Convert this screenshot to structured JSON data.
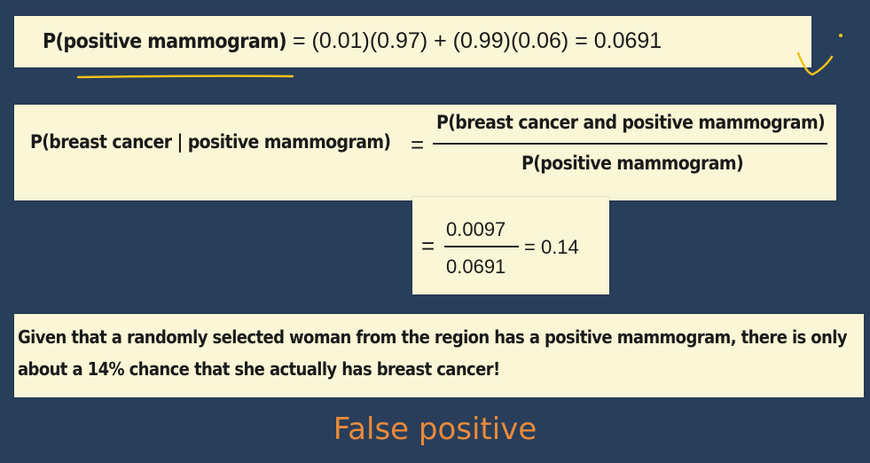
{
  "eq1": {
    "lhs": "P(positive mammogram)",
    "rhs": "= (0.01)(0.97) + (0.99)(0.06) = 0.0691"
  },
  "eq2": {
    "lhs": "P(breast cancer | positive mammogram)",
    "equals": "=",
    "numerator": "P(breast cancer and positive mammogram)",
    "denominator": "P(positive mammogram)"
  },
  "eq3": {
    "equals": "=",
    "numerator": "0.0097",
    "denominator": "0.0691",
    "result": "= 0.14"
  },
  "explanation": {
    "line1": "Given that a randomly selected woman from the region has a positive mammogram, there is only",
    "line2": "about a 14% chance that she actually has breast cancer!"
  },
  "title": "False positive",
  "colors": {
    "background": "#283e5a",
    "card": "#fbf6d6",
    "title": "#e98a3c",
    "annotation": "#f1c21b"
  }
}
